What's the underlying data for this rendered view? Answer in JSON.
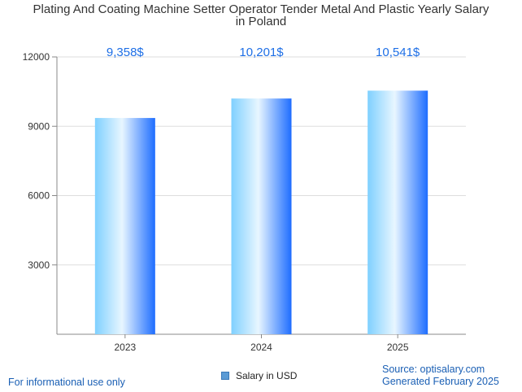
{
  "title_line1": "Plating And Coating Machine Setter Operator Tender Metal And Plastic Yearly Salary",
  "title_line2": "in Poland",
  "footer": {
    "left": "For informational use only",
    "source": "Source: optisalary.com",
    "generated": "Generated February 2025"
  },
  "colors": {
    "bar_light": "#e8f6ff",
    "bar_mid": "#7fd0ff",
    "bar_dark": "#1e6dff",
    "value_label": "#1e6fe6",
    "grid": "#dddddd",
    "axis": "#888888",
    "footer_text": "#1a5fb4"
  },
  "chart_data": {
    "type": "bar",
    "categories": [
      "2023",
      "2024",
      "2025"
    ],
    "series": [
      {
        "name": "Salary in USD",
        "values": [
          9358,
          10201,
          10541
        ]
      }
    ],
    "value_labels": [
      "9,358$",
      "10,201$",
      "10,541$"
    ],
    "ylim": [
      0,
      12000
    ],
    "yticks": [
      3000,
      6000,
      9000,
      12000
    ],
    "ytick_labels": [
      "3000",
      "6000",
      "9000",
      "12000"
    ],
    "grid": true,
    "legend_position": "bottom"
  }
}
